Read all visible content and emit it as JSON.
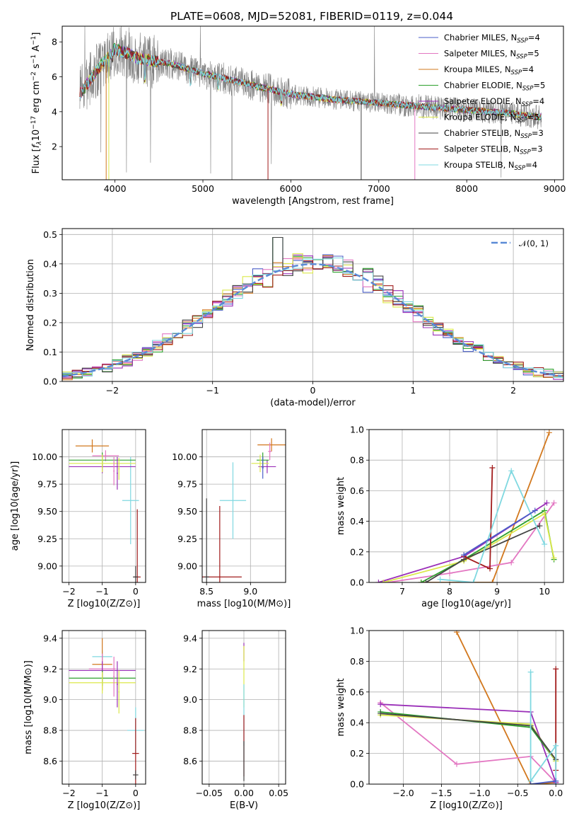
{
  "figure": {
    "title": "PLATE=0608, MJD=52081, FIBERID=0119, z=0.044"
  },
  "colors": {
    "grid": "#b0b0b0",
    "data_spectrum": "#808080",
    "normal_curve": "#5b8bd6"
  },
  "chart_data": [
    {
      "id": "spectrum",
      "type": "line",
      "xlabel": "wavelength [Angstrom, rest frame]",
      "ylabel": "Flux [f_λ10^-17 erg cm^-2 s^-1 A^-1]",
      "xlim": [
        3400,
        9100
      ],
      "ylim": [
        0.1,
        8.9
      ],
      "xticks": [
        4000,
        5000,
        6000,
        7000,
        8000,
        9000
      ],
      "yticks": [
        2,
        4,
        6,
        8
      ],
      "grid": false,
      "legend_position": "top-right",
      "continuum_nodes": [
        [
          3600,
          5.0
        ],
        [
          3800,
          6.4
        ],
        [
          4000,
          7.6
        ],
        [
          4300,
          7.0
        ],
        [
          4600,
          6.8
        ],
        [
          5000,
          6.2
        ],
        [
          5500,
          5.6
        ],
        [
          6000,
          5.0
        ],
        [
          6500,
          4.7
        ],
        [
          7000,
          4.5
        ],
        [
          7500,
          4.3
        ],
        [
          8000,
          4.1
        ],
        [
          8500,
          3.9
        ],
        [
          8800,
          3.7
        ]
      ],
      "models": [
        {
          "name": "Chabrier MILES",
          "nssp": "4",
          "color": "#4a5ec8"
        },
        {
          "name": "Salpeter MILES",
          "nssp": "5",
          "color": "#e377c2"
        },
        {
          "name": "Kroupa MILES",
          "nssp": "4",
          "color": "#d2781e"
        },
        {
          "name": "Chabrier ELODIE",
          "nssp": "5",
          "color": "#2ca02c"
        },
        {
          "name": "Salpeter ELODIE",
          "nssp": "4",
          "color": "#9a2fb8"
        },
        {
          "name": "Kroupa ELODIE",
          "nssp": "5",
          "color": "#dbe84a"
        },
        {
          "name": "Chabrier STELIB",
          "nssp": "3",
          "color": "#444444"
        },
        {
          "name": "Salpeter STELIB",
          "nssp": "3",
          "color": "#a11b1b"
        },
        {
          "name": "Kroupa STELIB",
          "nssp": "4",
          "color": "#7fd8e0"
        }
      ]
    },
    {
      "id": "residuals",
      "type": "line",
      "xlabel": "(data-model)/error",
      "ylabel": "Normed distribution",
      "xlim": [
        -2.5,
        2.5
      ],
      "ylim": [
        0.0,
        0.52
      ],
      "xticks": [
        -2,
        -1,
        0,
        1,
        2
      ],
      "yticks": [
        0.0,
        0.1,
        0.2,
        0.3,
        0.4,
        0.5
      ],
      "grid": true,
      "legend_position": "top-right",
      "legend": "𝒩(0, 1)",
      "bin_width": 0.1,
      "spike_bins": [
        [
          -0.35,
          0.49
        ],
        [
          -0.25,
          0.36
        ],
        [
          0.25,
          0.44
        ],
        [
          0.55,
          0.39
        ]
      ]
    },
    {
      "id": "age-vs-Z",
      "type": "scatter",
      "xlabel": "Z [log10(Z/Z⊙)]",
      "ylabel": "age [log10(age/yr)]",
      "xlim": [
        -2.2,
        0.3
      ],
      "ylim": [
        8.85,
        10.25
      ],
      "xticks": [
        -2,
        -1,
        0
      ],
      "yticks": [
        9.0,
        9.25,
        9.5,
        9.75,
        10.0
      ],
      "grid": true,
      "points": [
        {
          "c": 8,
          "x": -0.15,
          "y": 9.6,
          "xe": 0.25,
          "ye": 0.4
        },
        {
          "c": 7,
          "x": 0.05,
          "y": 8.9,
          "xe": 0.1,
          "ye": 0.62
        },
        {
          "c": 6,
          "x": 0.0,
          "y": 8.9,
          "xe": 0.08,
          "ye": 0.1
        },
        {
          "c": 2,
          "x": -1.3,
          "y": 10.1,
          "xe": 0.5,
          "ye": 0.06
        },
        {
          "c": 1,
          "x": -0.9,
          "y": 10.01,
          "xe": 0.4,
          "ye": 0.05
        },
        {
          "c": 4,
          "x": -1.0,
          "y": 9.91,
          "xe": 1.0,
          "ye": 0.06
        },
        {
          "c": 3,
          "x": -1.0,
          "y": 9.97,
          "xe": 1.0,
          "ye": 0.07
        },
        {
          "c": 5,
          "x": -1.0,
          "y": 9.94,
          "xe": 1.0,
          "ye": 0.08
        },
        {
          "c": 1,
          "x": -0.65,
          "y": 9.87,
          "xe": 0.02,
          "ye": 0.13
        },
        {
          "c": 4,
          "x": -0.55,
          "y": 9.85,
          "xe": 0.02,
          "ye": 0.15
        },
        {
          "c": 5,
          "x": -0.5,
          "y": 9.89,
          "xe": 0.02,
          "ye": 0.1
        }
      ]
    },
    {
      "id": "age-vs-mass",
      "type": "scatter",
      "xlabel": "mass [log10(M/M⊙)]",
      "ylabel": "",
      "xlim": [
        8.45,
        9.4
      ],
      "ylim": [
        8.85,
        10.25
      ],
      "xticks": [
        8.5,
        9.0
      ],
      "yticks": [
        9.0,
        9.25,
        9.5,
        9.75,
        10.0
      ],
      "grid": true,
      "points": [
        {
          "c": 8,
          "x": 8.8,
          "y": 9.6,
          "xe": 0.15,
          "ye": 0.35
        },
        {
          "c": 7,
          "x": 8.65,
          "y": 8.9,
          "xe": 0.25,
          "ye": 0.65
        },
        {
          "c": 6,
          "x": 8.5,
          "y": 8.9,
          "xe": 0.03,
          "ye": 0.72
        },
        {
          "c": 2,
          "x": 9.24,
          "y": 10.11,
          "xe": 0.16,
          "ye": 0.06
        },
        {
          "c": 1,
          "x": 9.22,
          "y": 10.05,
          "xe": 0.02,
          "ye": 0.08
        },
        {
          "c": 4,
          "x": 9.19,
          "y": 9.91,
          "xe": 0.1,
          "ye": 0.06
        },
        {
          "c": 3,
          "x": 9.14,
          "y": 9.97,
          "xe": 0.07,
          "ye": 0.07
        },
        {
          "c": 5,
          "x": 9.11,
          "y": 9.94,
          "xe": 0.1,
          "ye": 0.08
        },
        {
          "c": 0,
          "x": 9.14,
          "y": 9.9,
          "xe": 0.01,
          "ye": 0.1
        }
      ]
    },
    {
      "id": "weight-vs-age",
      "type": "line",
      "xlabel": "age [log10(age/yr)]",
      "ylabel": "mass weight",
      "xlim": [
        6.3,
        10.4
      ],
      "ylim": [
        0.0,
        1.0
      ],
      "xticks": [
        7,
        8,
        9,
        10
      ],
      "yticks": [
        0.0,
        0.2,
        0.4,
        0.6,
        0.8,
        1.0
      ],
      "grid": true,
      "series": [
        {
          "c": 2,
          "points": [
            [
              7.4,
              0.0
            ],
            [
              8.9,
              0.0
            ],
            [
              10.1,
              0.98
            ]
          ]
        },
        {
          "c": 1,
          "points": [
            [
              6.7,
              0.0
            ],
            [
              8.0,
              0.06
            ],
            [
              9.3,
              0.13
            ],
            [
              10.2,
              0.52
            ]
          ]
        },
        {
          "c": 4,
          "points": [
            [
              6.5,
              0.0
            ],
            [
              8.3,
              0.17
            ],
            [
              10.05,
              0.52
            ]
          ]
        },
        {
          "c": 3,
          "points": [
            [
              7.4,
              0.0
            ],
            [
              8.3,
              0.15
            ],
            [
              10.0,
              0.47
            ],
            [
              10.2,
              0.15
            ]
          ]
        },
        {
          "c": 5,
          "points": [
            [
              6.6,
              0.0
            ],
            [
              8.3,
              0.14
            ],
            [
              10.0,
              0.45
            ],
            [
              10.2,
              0.16
            ]
          ]
        },
        {
          "c": 6,
          "points": [
            [
              7.5,
              0.0
            ],
            [
              8.3,
              0.15
            ],
            [
              9.9,
              0.37
            ]
          ]
        },
        {
          "c": 7,
          "points": [
            [
              8.3,
              0.17
            ],
            [
              8.85,
              0.09
            ],
            [
              8.9,
              0.75
            ]
          ]
        },
        {
          "c": 8,
          "points": [
            [
              7.8,
              0.02
            ],
            [
              8.5,
              0.0
            ],
            [
              9.3,
              0.73
            ],
            [
              10.0,
              0.25
            ]
          ]
        },
        {
          "c": 0,
          "points": [
            [
              8.3,
              0.18
            ],
            [
              9.8,
              0.47
            ]
          ]
        }
      ]
    },
    {
      "id": "mass-vs-Z",
      "type": "scatter",
      "xlabel": "Z [log10(Z/Z⊙)]",
      "ylabel": "mass [log10(M/M⊙)]",
      "xlim": [
        -2.2,
        0.3
      ],
      "ylim": [
        8.45,
        9.45
      ],
      "xticks": [
        -2,
        -1,
        0
      ],
      "yticks": [
        8.6,
        8.8,
        9.0,
        9.2,
        9.4
      ],
      "grid": true,
      "points": [
        {
          "c": 8,
          "x": 0.0,
          "y": 8.8,
          "xe": 0.25,
          "ye": 0.15
        },
        {
          "c": 7,
          "x": 0.0,
          "y": 8.65,
          "xe": 0.1,
          "ye": 0.23
        },
        {
          "c": 6,
          "x": 0.0,
          "y": 8.51,
          "xe": 0.08,
          "ye": 0.03
        },
        {
          "c": 8,
          "x": -1.0,
          "y": 9.28,
          "xe": 0.3,
          "ye": 0.04
        },
        {
          "c": 2,
          "x": -1.0,
          "y": 9.23,
          "xe": 0.3,
          "ye": 0.17
        },
        {
          "c": 1,
          "x": -1.0,
          "y": 9.2,
          "xe": 0.4,
          "ye": 0.1
        },
        {
          "c": 4,
          "x": -1.0,
          "y": 9.19,
          "xe": 1.0,
          "ye": 0.06
        },
        {
          "c": 3,
          "x": -1.0,
          "y": 9.14,
          "xe": 1.0,
          "ye": 0.05
        },
        {
          "c": 5,
          "x": -1.0,
          "y": 9.11,
          "xe": 1.0,
          "ye": 0.07
        },
        {
          "c": 1,
          "x": -0.65,
          "y": 9.15,
          "xe": 0.02,
          "ye": 0.13
        },
        {
          "c": 4,
          "x": -0.55,
          "y": 9.1,
          "xe": 0.02,
          "ye": 0.15
        },
        {
          "c": 5,
          "x": -0.5,
          "y": 9.05,
          "xe": 0.02,
          "ye": 0.14
        }
      ]
    },
    {
      "id": "mass-vs-EBV",
      "type": "scatter",
      "xlabel": "E(B-V)",
      "ylabel": "",
      "xlim": [
        -0.06,
        0.06
      ],
      "ylim": [
        8.45,
        9.45
      ],
      "xticks": [
        -0.05,
        0.0,
        0.05
      ],
      "yticks": [
        8.6,
        8.8,
        9.0,
        9.2,
        9.4
      ],
      "grid": true,
      "points": [
        {
          "c": 4,
          "x": 0.0,
          "y": 9.31,
          "xe": 0.0,
          "ye": 0.06
        },
        {
          "c": 5,
          "x": 0.0,
          "y": 9.15,
          "xe": 0.0,
          "ye": 0.2
        },
        {
          "c": 8,
          "x": 0.0,
          "y": 8.9,
          "xe": 0.0,
          "ye": 0.2
        },
        {
          "c": 7,
          "x": 0.0,
          "y": 8.7,
          "xe": 0.0,
          "ye": 0.2
        },
        {
          "c": 6,
          "x": 0.0,
          "y": 8.6,
          "xe": 0.0,
          "ye": 0.13
        }
      ]
    },
    {
      "id": "weight-vs-Z",
      "type": "line",
      "xlabel": "Z [log10(Z/Z⊙)]",
      "ylabel": "mass weight",
      "xlim": [
        -2.45,
        0.1
      ],
      "ylim": [
        0.0,
        1.0
      ],
      "xticks": [
        -2.0,
        -1.5,
        -1.0,
        -0.5,
        0.0
      ],
      "yticks": [
        0.0,
        0.2,
        0.4,
        0.6,
        0.8,
        1.0
      ],
      "grid": true,
      "series": [
        {
          "c": 2,
          "points": [
            [
              -1.3,
              0.99
            ],
            [
              -0.33,
              0.0
            ],
            [
              0.0,
              0.01
            ]
          ]
        },
        {
          "c": 1,
          "points": [
            [
              -2.3,
              0.53
            ],
            [
              -1.3,
              0.13
            ],
            [
              -0.33,
              0.18
            ],
            [
              0.0,
              0.01
            ]
          ]
        },
        {
          "c": 4,
          "points": [
            [
              -2.3,
              0.52
            ],
            [
              -0.33,
              0.47
            ],
            [
              0.0,
              0.01
            ]
          ]
        },
        {
          "c": 3,
          "points": [
            [
              -2.3,
              0.47
            ],
            [
              -0.33,
              0.37
            ],
            [
              0.0,
              0.15
            ]
          ]
        },
        {
          "c": 5,
          "points": [
            [
              -2.3,
              0.45
            ],
            [
              -0.33,
              0.39
            ],
            [
              0.0,
              0.15
            ]
          ]
        },
        {
          "c": 6,
          "points": [
            [
              -2.3,
              0.46
            ],
            [
              -0.33,
              0.38
            ],
            [
              0.0,
              0.16
            ]
          ]
        },
        {
          "c": 7,
          "points": [
            [
              0.0,
              0.75
            ],
            [
              0.0,
              0.09
            ]
          ]
        },
        {
          "c": 8,
          "points": [
            [
              -0.33,
              0.73
            ],
            [
              -0.33,
              0.02
            ],
            [
              0.0,
              0.25
            ],
            [
              0.0,
              0.0
            ]
          ]
        },
        {
          "c": 0,
          "points": [
            [
              -0.33,
              0.0
            ],
            [
              0.0,
              0.02
            ]
          ]
        }
      ]
    }
  ]
}
